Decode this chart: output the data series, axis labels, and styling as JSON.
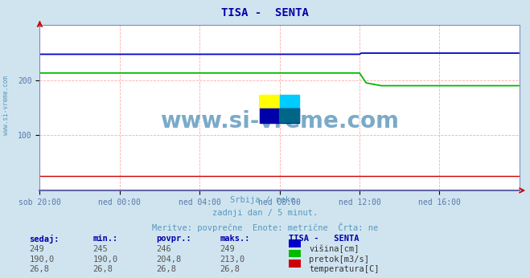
{
  "title": "TISA -  SENTA",
  "title_color": "#0000aa",
  "bg_color": "#d0e4f0",
  "plot_bg_color": "#ffffff",
  "grid_color": "#ffaaaa",
  "grid_linestyle": "--",
  "xlabel_ticks": [
    "sob 20:00",
    "ned 00:00",
    "ned 04:00",
    "ned 08:00",
    "ned 12:00",
    "ned 16:00"
  ],
  "ylim": [
    0,
    300
  ],
  "yticks": [
    100,
    200
  ],
  "xlim": [
    0,
    288
  ],
  "tick_positions": [
    0,
    48,
    96,
    144,
    192,
    240
  ],
  "line_visina_color": "#0000cc",
  "line_pretok_color": "#00bb00",
  "line_temperatura_color": "#cc0000",
  "visina_data_x": [
    0,
    192,
    193,
    288
  ],
  "visina_data_y": [
    247,
    247,
    249,
    249
  ],
  "pretok_data_x": [
    0,
    192,
    196,
    205,
    288
  ],
  "pretok_data_y": [
    213,
    213,
    195,
    190,
    190
  ],
  "temperatura_data_x": [
    0,
    288
  ],
  "temperatura_data_y": [
    26.8,
    26.8
  ],
  "watermark": "www.si-vreme.com",
  "watermark_color": "#7aaac8",
  "sub_text1": "Srbija / reke.",
  "sub_text2": "zadnji dan / 5 minut.",
  "sub_text3": "Meritve: povprečne  Enote: metrične  Črta: ne",
  "sub_text_color": "#5599bb",
  "table_header": [
    "sedaj:",
    "min.:",
    "povpr.:",
    "maks.:",
    "TISA -   SENTA"
  ],
  "table_rows": [
    [
      "249",
      "245",
      "246",
      "249",
      "višina[cm]"
    ],
    [
      "190,0",
      "190,0",
      "204,8",
      "213,0",
      "pretok[m3/s]"
    ],
    [
      "26,8",
      "26,8",
      "26,8",
      "26,8",
      "temperatura[C]"
    ]
  ],
  "table_colors": [
    "#0000cc",
    "#00bb00",
    "#cc0000"
  ],
  "sidebar_text": "www.si-vreme.com",
  "sidebar_color": "#5599bb",
  "logo_colors": {
    "top_left": "#ffff00",
    "top_right": "#00ccff",
    "bottom": "#0000aa",
    "diagonal": "#006688"
  }
}
